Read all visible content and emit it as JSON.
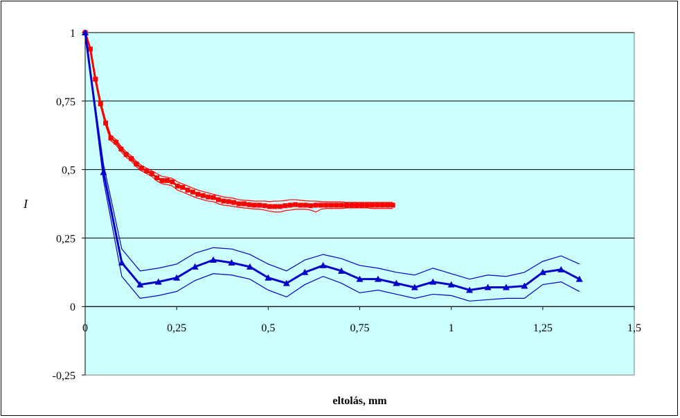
{
  "chart_data": {
    "type": "line",
    "title": "",
    "xlabel": "eltolás, mm",
    "ylabel": "I",
    "xlim": [
      0,
      1.5
    ],
    "ylim": [
      -0.25,
      1
    ],
    "x_ticks": [
      "0",
      "0,25",
      "0,5",
      "0,75",
      "1",
      "1,25",
      "1,5"
    ],
    "y_ticks": [
      "-0,25",
      "0",
      "0,25",
      "0,5",
      "0,75",
      "1"
    ],
    "grid": "horizontal",
    "plot_background": "#ccffff",
    "series": [
      {
        "color": "#ff0000",
        "marker": "square",
        "x": [
          0,
          0.014,
          0.028,
          0.042,
          0.056,
          0.07,
          0.084,
          0.098,
          0.112,
          0.126,
          0.14,
          0.154,
          0.168,
          0.182,
          0.196,
          0.21,
          0.224,
          0.238,
          0.252,
          0.266,
          0.28,
          0.294,
          0.308,
          0.322,
          0.336,
          0.35,
          0.364,
          0.378,
          0.392,
          0.406,
          0.42,
          0.434,
          0.448,
          0.462,
          0.476,
          0.49,
          0.504,
          0.518,
          0.532,
          0.546,
          0.56,
          0.574,
          0.588,
          0.602,
          0.616,
          0.63,
          0.644,
          0.658,
          0.672,
          0.686,
          0.7,
          0.714,
          0.728,
          0.742,
          0.756,
          0.77,
          0.784,
          0.798,
          0.812,
          0.826,
          0.84
        ],
        "values": [
          1.0,
          0.94,
          0.83,
          0.74,
          0.67,
          0.615,
          0.6,
          0.575,
          0.555,
          0.54,
          0.52,
          0.505,
          0.495,
          0.485,
          0.47,
          0.46,
          0.46,
          0.455,
          0.44,
          0.435,
          0.425,
          0.418,
          0.41,
          0.405,
          0.4,
          0.398,
          0.39,
          0.385,
          0.383,
          0.38,
          0.375,
          0.375,
          0.372,
          0.37,
          0.37,
          0.368,
          0.365,
          0.365,
          0.365,
          0.368,
          0.37,
          0.372,
          0.37,
          0.37,
          0.368,
          0.37,
          0.37,
          0.37,
          0.37,
          0.37,
          0.37,
          0.37,
          0.37,
          0.37,
          0.37,
          0.37,
          0.37,
          0.37,
          0.37,
          0.37,
          0.37
        ],
        "upper": [
          1.0,
          0.945,
          0.84,
          0.75,
          0.68,
          0.625,
          0.61,
          0.585,
          0.565,
          0.55,
          0.53,
          0.515,
          0.505,
          0.495,
          0.485,
          0.475,
          0.472,
          0.468,
          0.455,
          0.448,
          0.44,
          0.432,
          0.425,
          0.42,
          0.415,
          0.41,
          0.405,
          0.4,
          0.398,
          0.395,
          0.39,
          0.388,
          0.387,
          0.385,
          0.385,
          0.385,
          0.383,
          0.385,
          0.385,
          0.387,
          0.39,
          0.39,
          0.388,
          0.386,
          0.385,
          0.385,
          0.383,
          0.382,
          0.382,
          0.382,
          0.382,
          0.38,
          0.38,
          0.38,
          0.38,
          0.38,
          0.38,
          0.38,
          0.38,
          0.38,
          0.38
        ],
        "lower": [
          1.0,
          0.935,
          0.82,
          0.73,
          0.66,
          0.605,
          0.59,
          0.565,
          0.545,
          0.53,
          0.51,
          0.495,
          0.485,
          0.475,
          0.458,
          0.448,
          0.445,
          0.44,
          0.425,
          0.418,
          0.41,
          0.402,
          0.395,
          0.39,
          0.385,
          0.383,
          0.375,
          0.37,
          0.368,
          0.365,
          0.362,
          0.36,
          0.358,
          0.356,
          0.355,
          0.352,
          0.348,
          0.345,
          0.345,
          0.35,
          0.352,
          0.355,
          0.355,
          0.355,
          0.352,
          0.345,
          0.355,
          0.358,
          0.358,
          0.358,
          0.358,
          0.36,
          0.36,
          0.36,
          0.36,
          0.36,
          0.358,
          0.358,
          0.358,
          0.358,
          0.358
        ]
      },
      {
        "color": "#0000cc",
        "marker": "triangle",
        "x": [
          0,
          0.05,
          0.1,
          0.15,
          0.2,
          0.25,
          0.3,
          0.35,
          0.4,
          0.45,
          0.5,
          0.55,
          0.6,
          0.65,
          0.7,
          0.75,
          0.8,
          0.85,
          0.9,
          0.95,
          1.0,
          1.05,
          1.1,
          1.15,
          1.2,
          1.25,
          1.3,
          1.35
        ],
        "values": [
          1.0,
          0.49,
          0.16,
          0.08,
          0.09,
          0.105,
          0.145,
          0.17,
          0.16,
          0.145,
          0.105,
          0.085,
          0.125,
          0.15,
          0.13,
          0.1,
          0.1,
          0.085,
          0.07,
          0.09,
          0.08,
          0.06,
          0.07,
          0.07,
          0.075,
          0.125,
          0.135,
          0.1
        ],
        "upper": [
          1.0,
          0.52,
          0.21,
          0.13,
          0.14,
          0.155,
          0.195,
          0.215,
          0.21,
          0.19,
          0.155,
          0.13,
          0.17,
          0.19,
          0.175,
          0.15,
          0.14,
          0.125,
          0.115,
          0.14,
          0.12,
          0.1,
          0.115,
          0.11,
          0.125,
          0.165,
          0.185,
          0.155
        ],
        "lower": [
          1.0,
          0.46,
          0.11,
          0.03,
          0.04,
          0.055,
          0.095,
          0.12,
          0.115,
          0.1,
          0.06,
          0.035,
          0.08,
          0.11,
          0.085,
          0.05,
          0.06,
          0.045,
          0.03,
          0.045,
          0.04,
          0.02,
          0.025,
          0.03,
          0.03,
          0.08,
          0.09,
          0.055
        ]
      }
    ]
  }
}
